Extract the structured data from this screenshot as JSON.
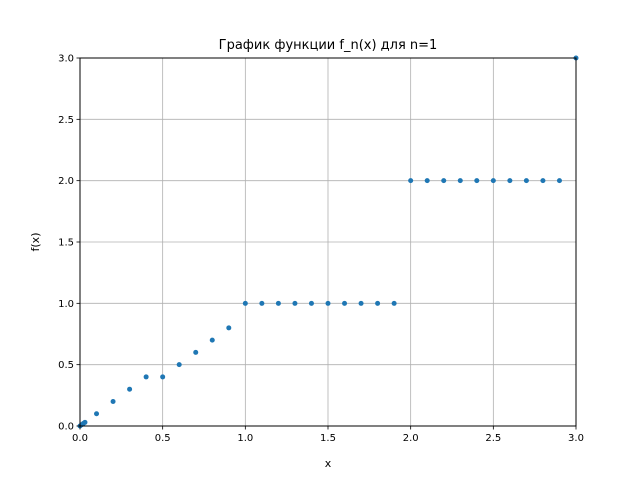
{
  "chart_data": {
    "type": "scatter",
    "title": "График функции f_n(x) для n=1",
    "xlabel": "x",
    "ylabel": "f(x)",
    "xlim": [
      0,
      3
    ],
    "ylim": [
      0,
      3
    ],
    "xticks": [
      "0.0",
      "0.5",
      "1.0",
      "1.5",
      "2.0",
      "2.5",
      "3.0"
    ],
    "yticks": [
      "0.0",
      "0.5",
      "1.0",
      "1.5",
      "2.0",
      "2.5",
      "3.0"
    ],
    "grid": true,
    "marker_color": "#1f77b4",
    "series": [
      {
        "x": [
          0.0,
          0.01,
          0.02,
          0.03,
          0.1,
          0.2,
          0.3,
          0.4,
          0.5,
          0.6,
          0.7,
          0.8,
          0.9,
          1.0,
          1.1,
          1.2,
          1.3,
          1.4,
          1.5,
          1.6,
          1.7,
          1.8,
          1.9,
          2.0,
          2.1,
          2.2,
          2.3,
          2.4,
          2.5,
          2.6,
          2.7,
          2.8,
          2.9,
          3.0
        ],
        "y": [
          0.0,
          0.01,
          0.02,
          0.03,
          0.1,
          0.2,
          0.3,
          0.4,
          0.4,
          0.5,
          0.6,
          0.7,
          0.8,
          1.0,
          1.0,
          1.0,
          1.0,
          1.0,
          1.0,
          1.0,
          1.0,
          1.0,
          1.0,
          2.0,
          2.0,
          2.0,
          2.0,
          2.0,
          2.0,
          2.0,
          2.0,
          2.0,
          2.0,
          3.0
        ]
      }
    ]
  }
}
